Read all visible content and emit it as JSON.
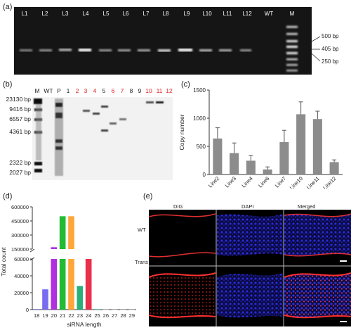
{
  "panels": {
    "a": {
      "label": "(a)",
      "lanes": [
        "L1",
        "L2",
        "L3",
        "L4",
        "L5",
        "L6",
        "L7",
        "L8",
        "L9",
        "L10",
        "L11",
        "L12",
        "WT",
        "M"
      ],
      "size_labels": [
        "500 bp",
        "405 bp",
        "250 bp"
      ]
    },
    "b": {
      "label": "(b)",
      "lanes": [
        {
          "text": "M",
          "color": "#222222"
        },
        {
          "text": "WT",
          "color": "#222222"
        },
        {
          "text": "P",
          "color": "#222222"
        },
        {
          "text": "1",
          "color": "#222222"
        },
        {
          "text": "2",
          "color": "#e02020"
        },
        {
          "text": "3",
          "color": "#e02020"
        },
        {
          "text": "4",
          "color": "#e02020"
        },
        {
          "text": "5",
          "color": "#222222"
        },
        {
          "text": "6",
          "color": "#e02020"
        },
        {
          "text": "7",
          "color": "#e02020"
        },
        {
          "text": "8",
          "color": "#222222"
        },
        {
          "text": "9",
          "color": "#222222"
        },
        {
          "text": "10",
          "color": "#e02020"
        },
        {
          "text": "11",
          "color": "#e02020"
        },
        {
          "text": "12",
          "color": "#e02020"
        }
      ],
      "size_labels": [
        "23130 bp",
        "9416 bp",
        "6557 bp",
        "4361 bp",
        "2322 bp",
        "2027 bp"
      ]
    },
    "c": {
      "label": "(c)"
    },
    "d": {
      "label": "(d)"
    },
    "e": {
      "label": "(e)",
      "column_titles": [
        "DIG",
        "DAPI",
        "Merged"
      ],
      "row_labels": [
        "WT",
        "Trans"
      ]
    }
  },
  "chart_data": [
    {
      "type": "bar",
      "panel": "c",
      "categories": [
        "Line2",
        "Line3",
        "Line4",
        "Line6",
        "Line7",
        "Line10",
        "Line11",
        "Line12"
      ],
      "values": [
        640,
        380,
        245,
        90,
        575,
        1070,
        985,
        220
      ],
      "errors": [
        190,
        180,
        95,
        45,
        210,
        220,
        140,
        40
      ],
      "ylabel": "Copy number",
      "xlabel": "",
      "ylim": [
        0,
        1500
      ],
      "yticks": [
        0,
        500,
        1000,
        1500
      ],
      "bar_color": "#8c8c8c"
    },
    {
      "type": "bar",
      "panel": "d",
      "categories": [
        "18",
        "19",
        "20",
        "21",
        "22",
        "23",
        "24",
        "25",
        "26",
        "27",
        "28",
        "29"
      ],
      "values": [
        300,
        24000,
        170000,
        500000,
        500000,
        28000,
        60000,
        800,
        100,
        50,
        30,
        20
      ],
      "colors": [
        "#2a2af0",
        "#7a6cf0",
        "#b030e0",
        "#22bb33",
        "#ffa53a",
        "#2ab07a",
        "#e8304a",
        "#7ad0b0",
        "#cccccc",
        "#cccccc",
        "#cccccc",
        "#cccccc"
      ],
      "ylabel": "Total count",
      "xlabel": "siRNA length",
      "lower_ticks": [
        "0",
        "20000",
        "40000",
        "60000"
      ],
      "upper_ticks": [
        "150000",
        "300000",
        "450000",
        "600000"
      ],
      "scale": "broken axis"
    }
  ]
}
